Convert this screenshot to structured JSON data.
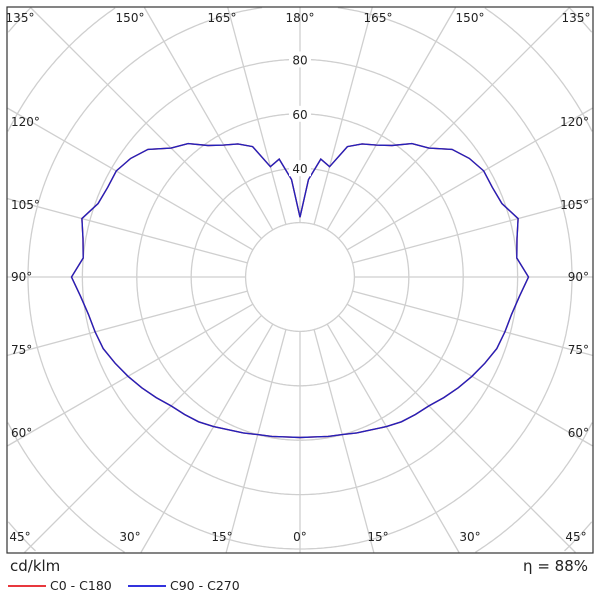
{
  "chart_data": {
    "type": "polar",
    "unit_label": "cd/klm",
    "efficiency": "η = 88%",
    "radial_ticks": [
      40,
      60,
      80
    ],
    "radial_grid": [
      20,
      40,
      60,
      80,
      100,
      120,
      140
    ],
    "angle_labels_top": [
      "135°",
      "150°",
      "165°",
      "180°",
      "165°",
      "150°",
      "135°"
    ],
    "angle_labels_bottom": [
      "45°",
      "30°",
      "15°",
      "0°",
      "15°",
      "30°",
      "45°"
    ],
    "angle_labels_side": [
      "120°",
      "105°",
      "90°",
      "75°",
      "60°"
    ],
    "gamma": [
      0,
      5,
      10,
      15,
      20,
      25,
      30,
      35,
      40,
      45,
      50,
      55,
      60,
      65,
      70,
      75,
      80,
      85,
      90,
      95,
      100,
      105,
      110,
      115,
      120,
      125,
      130,
      135,
      140,
      145,
      150,
      155,
      160,
      165,
      170,
      175,
      180
    ],
    "series": [
      {
        "name": "C0 - C180",
        "color": "#e8383d",
        "values": [
          59,
          59,
          59.5,
          60,
          61,
          62,
          63.5,
          65,
          66,
          67,
          69,
          71,
          73,
          75,
          77,
          78,
          79,
          81,
          84,
          80,
          81,
          83,
          79,
          78,
          78,
          76,
          73,
          67,
          64,
          59,
          56,
          54,
          51,
          42,
          44,
          36,
          22
        ]
      },
      {
        "name": "C90 - C270",
        "color": "#2222bb",
        "values": [
          59,
          59,
          59.5,
          60,
          61,
          62,
          63.5,
          65,
          66,
          67,
          69,
          71,
          73,
          75,
          77,
          78,
          79,
          81,
          84,
          80,
          81,
          83,
          79,
          78,
          78,
          76,
          73,
          67,
          64,
          59,
          56,
          54,
          51,
          42,
          44,
          36,
          22
        ]
      }
    ]
  }
}
